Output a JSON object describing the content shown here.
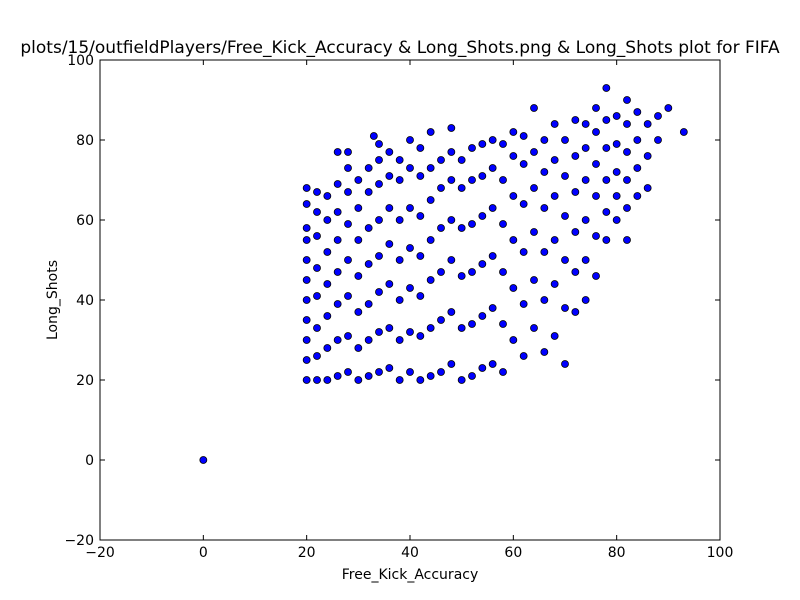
{
  "chart_data": {
    "type": "scatter",
    "title": "plots/15/outfieldPlayers/Free_Kick_Accuracy & Long_Shots.png & Long_Shots plot for FIFA",
    "xlabel": "Free_Kick_Accuracy",
    "ylabel": "Long_Shots",
    "xlim": [
      -20,
      100
    ],
    "ylim": [
      -20,
      100
    ],
    "xticks": [
      "−20",
      "0",
      "20",
      "40",
      "60",
      "80",
      "100"
    ],
    "yticks": [
      "−20",
      "0",
      "20",
      "40",
      "60",
      "80",
      "100"
    ],
    "grid": false,
    "marker_color": "#0000ff",
    "marker_edge": "#000000",
    "points": [
      [
        0,
        0
      ],
      [
        20,
        20
      ],
      [
        20,
        25
      ],
      [
        20,
        30
      ],
      [
        20,
        35
      ],
      [
        20,
        40
      ],
      [
        20,
        45
      ],
      [
        20,
        50
      ],
      [
        20,
        55
      ],
      [
        20,
        58
      ],
      [
        20,
        64
      ],
      [
        20,
        68
      ],
      [
        22,
        20
      ],
      [
        22,
        26
      ],
      [
        22,
        33
      ],
      [
        22,
        41
      ],
      [
        22,
        48
      ],
      [
        22,
        56
      ],
      [
        22,
        62
      ],
      [
        22,
        67
      ],
      [
        24,
        20
      ],
      [
        24,
        28
      ],
      [
        24,
        36
      ],
      [
        24,
        44
      ],
      [
        24,
        52
      ],
      [
        24,
        60
      ],
      [
        24,
        66
      ],
      [
        26,
        21
      ],
      [
        26,
        30
      ],
      [
        26,
        39
      ],
      [
        26,
        47
      ],
      [
        26,
        55
      ],
      [
        26,
        62
      ],
      [
        26,
        69
      ],
      [
        26,
        77
      ],
      [
        28,
        22
      ],
      [
        28,
        31
      ],
      [
        28,
        41
      ],
      [
        28,
        50
      ],
      [
        28,
        59
      ],
      [
        28,
        67
      ],
      [
        28,
        73
      ],
      [
        28,
        77
      ],
      [
        30,
        20
      ],
      [
        30,
        28
      ],
      [
        30,
        37
      ],
      [
        30,
        46
      ],
      [
        30,
        55
      ],
      [
        30,
        63
      ],
      [
        30,
        70
      ],
      [
        32,
        21
      ],
      [
        32,
        30
      ],
      [
        32,
        39
      ],
      [
        32,
        49
      ],
      [
        32,
        58
      ],
      [
        32,
        67
      ],
      [
        32,
        73
      ],
      [
        33,
        81
      ],
      [
        34,
        22
      ],
      [
        34,
        32
      ],
      [
        34,
        42
      ],
      [
        34,
        51
      ],
      [
        34,
        60
      ],
      [
        34,
        69
      ],
      [
        34,
        75
      ],
      [
        34,
        79
      ],
      [
        36,
        23
      ],
      [
        36,
        33
      ],
      [
        36,
        44
      ],
      [
        36,
        54
      ],
      [
        36,
        63
      ],
      [
        36,
        71
      ],
      [
        36,
        77
      ],
      [
        38,
        20
      ],
      [
        38,
        30
      ],
      [
        38,
        40
      ],
      [
        38,
        50
      ],
      [
        38,
        60
      ],
      [
        38,
        70
      ],
      [
        38,
        75
      ],
      [
        40,
        22
      ],
      [
        40,
        32
      ],
      [
        40,
        43
      ],
      [
        40,
        53
      ],
      [
        40,
        63
      ],
      [
        40,
        73
      ],
      [
        40,
        80
      ],
      [
        42,
        20
      ],
      [
        42,
        31
      ],
      [
        42,
        41
      ],
      [
        42,
        51
      ],
      [
        42,
        61
      ],
      [
        42,
        71
      ],
      [
        42,
        78
      ],
      [
        44,
        21
      ],
      [
        44,
        33
      ],
      [
        44,
        45
      ],
      [
        44,
        55
      ],
      [
        44,
        65
      ],
      [
        44,
        73
      ],
      [
        44,
        82
      ],
      [
        46,
        22
      ],
      [
        46,
        35
      ],
      [
        46,
        47
      ],
      [
        46,
        58
      ],
      [
        46,
        68
      ],
      [
        46,
        75
      ],
      [
        48,
        24
      ],
      [
        48,
        37
      ],
      [
        48,
        50
      ],
      [
        48,
        60
      ],
      [
        48,
        70
      ],
      [
        48,
        77
      ],
      [
        48,
        83
      ],
      [
        50,
        20
      ],
      [
        50,
        33
      ],
      [
        50,
        46
      ],
      [
        50,
        58
      ],
      [
        50,
        68
      ],
      [
        50,
        75
      ],
      [
        52,
        21
      ],
      [
        52,
        34
      ],
      [
        52,
        47
      ],
      [
        52,
        59
      ],
      [
        52,
        70
      ],
      [
        52,
        78
      ],
      [
        54,
        23
      ],
      [
        54,
        36
      ],
      [
        54,
        49
      ],
      [
        54,
        61
      ],
      [
        54,
        71
      ],
      [
        54,
        79
      ],
      [
        56,
        24
      ],
      [
        56,
        38
      ],
      [
        56,
        51
      ],
      [
        56,
        63
      ],
      [
        56,
        73
      ],
      [
        56,
        80
      ],
      [
        58,
        22
      ],
      [
        58,
        34
      ],
      [
        58,
        47
      ],
      [
        58,
        59
      ],
      [
        58,
        70
      ],
      [
        58,
        79
      ],
      [
        60,
        30
      ],
      [
        60,
        43
      ],
      [
        60,
        55
      ],
      [
        60,
        66
      ],
      [
        60,
        76
      ],
      [
        60,
        82
      ],
      [
        62,
        26
      ],
      [
        62,
        39
      ],
      [
        62,
        52
      ],
      [
        62,
        64
      ],
      [
        62,
        74
      ],
      [
        62,
        81
      ],
      [
        64,
        33
      ],
      [
        64,
        45
      ],
      [
        64,
        57
      ],
      [
        64,
        68
      ],
      [
        64,
        77
      ],
      [
        64,
        88
      ],
      [
        66,
        27
      ],
      [
        66,
        40
      ],
      [
        66,
        52
      ],
      [
        66,
        63
      ],
      [
        66,
        72
      ],
      [
        66,
        80
      ],
      [
        68,
        31
      ],
      [
        68,
        44
      ],
      [
        68,
        55
      ],
      [
        68,
        66
      ],
      [
        68,
        75
      ],
      [
        68,
        84
      ],
      [
        70,
        24
      ],
      [
        70,
        38
      ],
      [
        70,
        50
      ],
      [
        70,
        61
      ],
      [
        70,
        71
      ],
      [
        70,
        80
      ],
      [
        72,
        37
      ],
      [
        72,
        47
      ],
      [
        72,
        57
      ],
      [
        72,
        67
      ],
      [
        72,
        76
      ],
      [
        72,
        85
      ],
      [
        74,
        40
      ],
      [
        74,
        50
      ],
      [
        74,
        60
      ],
      [
        74,
        70
      ],
      [
        74,
        78
      ],
      [
        74,
        84
      ],
      [
        76,
        46
      ],
      [
        76,
        56
      ],
      [
        76,
        66
      ],
      [
        76,
        74
      ],
      [
        76,
        82
      ],
      [
        76,
        88
      ],
      [
        78,
        55
      ],
      [
        78,
        62
      ],
      [
        78,
        70
      ],
      [
        78,
        78
      ],
      [
        78,
        85
      ],
      [
        78,
        93
      ],
      [
        80,
        60
      ],
      [
        80,
        66
      ],
      [
        80,
        72
      ],
      [
        80,
        79
      ],
      [
        80,
        86
      ],
      [
        82,
        55
      ],
      [
        82,
        63
      ],
      [
        82,
        70
      ],
      [
        82,
        77
      ],
      [
        82,
        84
      ],
      [
        82,
        90
      ],
      [
        84,
        66
      ],
      [
        84,
        73
      ],
      [
        84,
        80
      ],
      [
        84,
        87
      ],
      [
        86,
        68
      ],
      [
        86,
        76
      ],
      [
        86,
        84
      ],
      [
        88,
        80
      ],
      [
        88,
        86
      ],
      [
        90,
        88
      ],
      [
        93,
        82
      ]
    ]
  }
}
